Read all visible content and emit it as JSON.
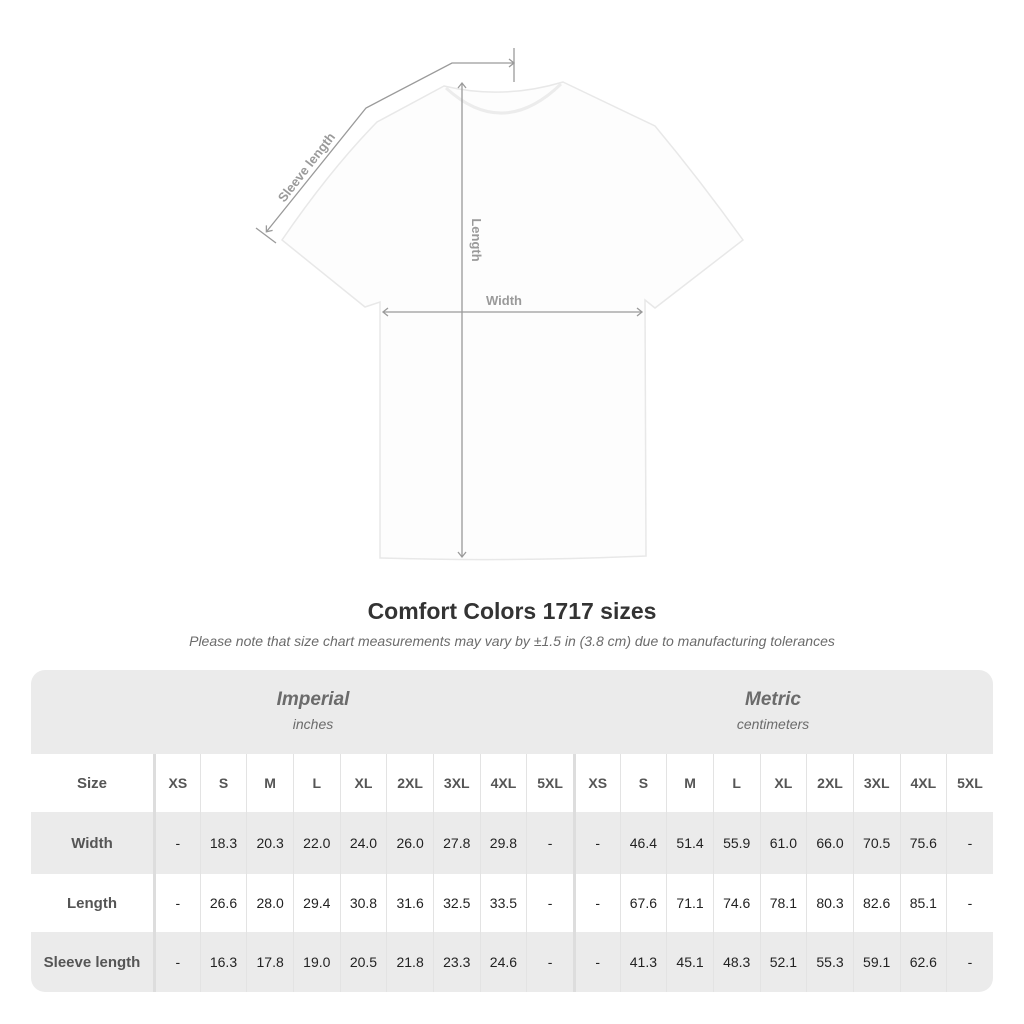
{
  "diagram": {
    "labels": {
      "sleeve": "Sleeve length",
      "length": "Length",
      "width": "Width"
    },
    "colors": {
      "annotation": "#9a9a9a",
      "shirt": "#fdfdfd",
      "outline": "#e6e6e6"
    }
  },
  "title": "Comfort Colors 1717 sizes",
  "subtitle": "Please note that size chart measurements may vary by ±1.5 in (3.8 cm) due to manufacturing tolerances",
  "table": {
    "groups": [
      {
        "name": "Imperial",
        "unit": "inches"
      },
      {
        "name": "Metric",
        "unit": "centimeters"
      }
    ],
    "size_label": "Size",
    "sizes": [
      "XS",
      "S",
      "M",
      "L",
      "XL",
      "2XL",
      "3XL",
      "4XL",
      "5XL"
    ],
    "rows": [
      {
        "label": "Width",
        "imperial": [
          "-",
          "18.3",
          "20.3",
          "22.0",
          "24.0",
          "26.0",
          "27.8",
          "29.8",
          "-"
        ],
        "metric": [
          "-",
          "46.4",
          "51.4",
          "55.9",
          "61.0",
          "66.0",
          "70.5",
          "75.6",
          "-"
        ]
      },
      {
        "label": "Length",
        "imperial": [
          "-",
          "26.6",
          "28.0",
          "29.4",
          "30.8",
          "31.6",
          "32.5",
          "33.5",
          "-"
        ],
        "metric": [
          "-",
          "67.6",
          "71.1",
          "74.6",
          "78.1",
          "80.3",
          "82.6",
          "85.1",
          "-"
        ]
      },
      {
        "label": "Sleeve length",
        "imperial": [
          "-",
          "16.3",
          "17.8",
          "19.0",
          "20.5",
          "21.8",
          "23.3",
          "24.6",
          "-"
        ],
        "metric": [
          "-",
          "41.3",
          "45.1",
          "48.3",
          "52.1",
          "55.3",
          "59.1",
          "62.6",
          "-"
        ]
      }
    ],
    "colors": {
      "band": "#ebebeb"
    }
  }
}
